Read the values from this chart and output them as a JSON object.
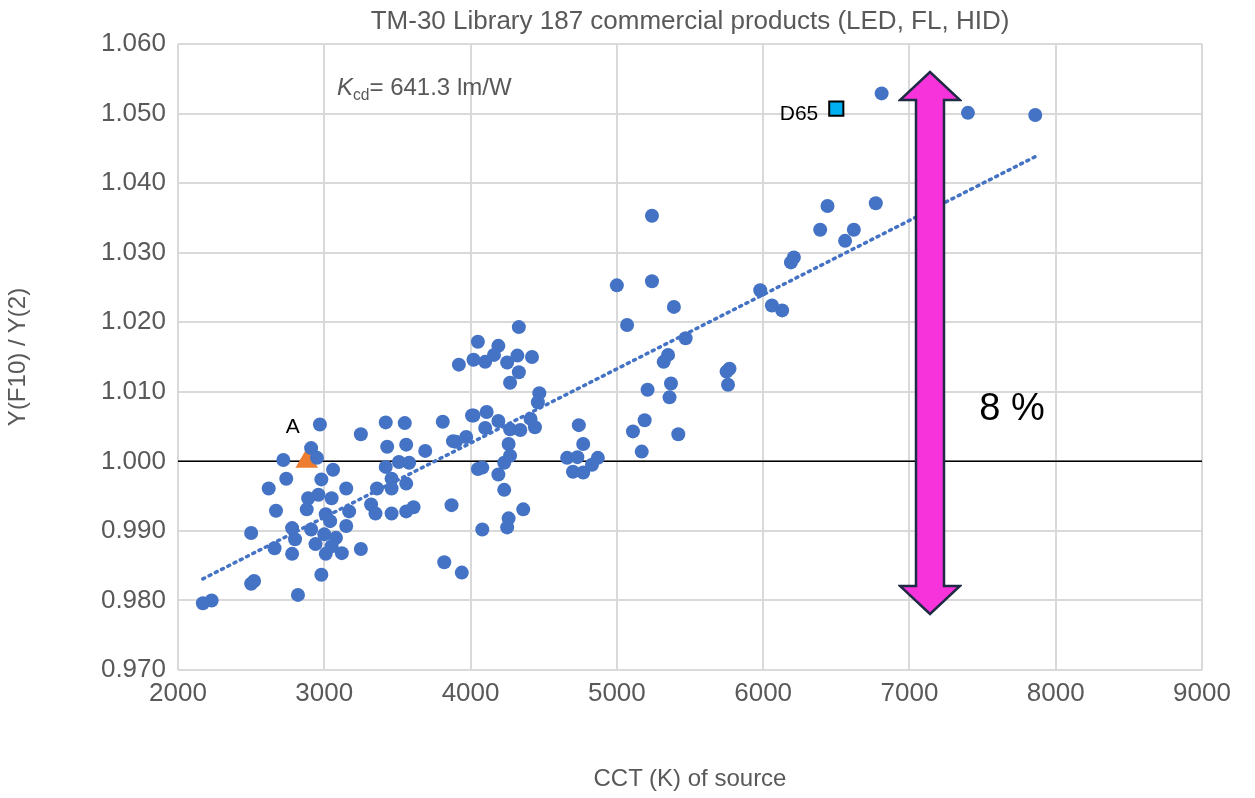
{
  "chart_data": {
    "type": "scatter",
    "title": "TM-30 Library 187 commercial products (LED, FL, HID)",
    "xlabel": "CCT (K) of source",
    "ylabel": "Y(F10) / Y(2)",
    "annotations": [
      "K$_{cd}$= 641.3 lm/W",
      "8 %"
    ],
    "xlim": [
      2000,
      9000
    ],
    "xticks": [
      2000,
      3000,
      4000,
      5000,
      6000,
      7000,
      8000,
      9000
    ],
    "ylim": [
      0.97,
      1.06
    ],
    "yticks": [
      {
        "value": 0.97,
        "label": "0.970"
      },
      {
        "value": 0.98,
        "label": "0.980"
      },
      {
        "value": 0.99,
        "label": "0.990"
      },
      {
        "value": 1.0,
        "label": "1.000"
      },
      {
        "value": 1.01,
        "label": "1.010"
      },
      {
        "value": 1.02,
        "label": "1.020"
      },
      {
        "value": 1.03,
        "label": "1.030"
      },
      {
        "value": 1.04,
        "label": "1.040"
      },
      {
        "value": 1.05,
        "label": "1.050"
      },
      {
        "value": 1.06,
        "label": "1.060"
      }
    ],
    "grid": true,
    "legend": false,
    "ref_lines": [
      {
        "axis": "y",
        "value": 1.0,
        "color": "#000000"
      }
    ],
    "series": [
      {
        "color": "#4472c4",
        "marker": "circle",
        "x": [
          2170,
          2230,
          2500,
          2500,
          2520,
          2620,
          2670,
          2660,
          2720,
          2740,
          2780,
          2780,
          2820,
          2910,
          2970,
          2950,
          3060,
          2980,
          3150,
          2890,
          2960,
          3050,
          2880,
          3010,
          3170,
          3040,
          3150,
          2910,
          3000,
          3080,
          2800,
          2940,
          3010,
          3120,
          3250,
          3050,
          2980,
          3250,
          3420,
          3550,
          3810,
          4010,
          3430,
          3560,
          3690,
          3900,
          3970,
          3420,
          3510,
          3580,
          3460,
          3560,
          3360,
          3460,
          3320,
          3350,
          3460,
          3560,
          3610,
          3870,
          3820,
          3940,
          4050,
          4330,
          4050,
          4190,
          4020,
          4100,
          4160,
          4250,
          4320,
          4420,
          3920,
          4330,
          4270,
          4470,
          4460,
          4020,
          4110,
          4100,
          4190,
          4270,
          4340,
          4410,
          4440,
          3880,
          4260,
          4270,
          4230,
          4080,
          4190,
          4230,
          4360,
          4260,
          4250,
          4080,
          4740,
          4770,
          4660,
          4730,
          4870,
          4700,
          4770,
          4830,
          5240,
          5000,
          5240,
          5390,
          5070,
          5470,
          5350,
          5320,
          5770,
          5750,
          5760,
          5370,
          5210,
          5360,
          5190,
          5110,
          5420,
          5170,
          5980,
          6060,
          6130,
          6190,
          6210,
          6390,
          6560,
          6620,
          6440,
          6770,
          6810,
          7400,
          7860
        ],
        "values": [
          0.9796,
          0.98,
          0.9897,
          0.9824,
          0.9828,
          0.9961,
          0.9929,
          0.9875,
          1.0002,
          0.9975,
          0.9904,
          0.9867,
          0.9808,
          1.0019,
          1.0053,
          1.0005,
          0.9988,
          0.9974,
          0.9961,
          0.9947,
          0.9952,
          0.9947,
          0.9931,
          0.9924,
          0.9928,
          0.9914,
          0.9907,
          0.9902,
          0.9895,
          0.989,
          0.9888,
          0.9881,
          0.9867,
          0.9868,
          0.9874,
          0.9878,
          0.9837,
          1.0039,
          1.0056,
          1.0055,
          1.0057,
          1.0066,
          1.0021,
          1.0024,
          1.0015,
          1.0028,
          1.0035,
          0.9992,
          0.9999,
          0.9998,
          0.9975,
          0.9968,
          0.9961,
          0.9961,
          0.9938,
          0.9925,
          0.9925,
          0.9928,
          0.9934,
          0.9937,
          0.9855,
          0.984,
          0.9989,
          1.0193,
          1.0172,
          1.0166,
          1.0146,
          1.0143,
          1.0153,
          1.0142,
          1.0152,
          1.015,
          1.0139,
          1.0128,
          1.0113,
          1.0098,
          1.0085,
          1.0066,
          1.0071,
          1.0048,
          1.0058,
          1.0046,
          1.0045,
          1.0061,
          1.0049,
          1.0029,
          1.0025,
          1.0008,
          0.9998,
          0.9991,
          0.9981,
          0.9959,
          0.9931,
          0.9918,
          0.9905,
          0.9902,
          1.0052,
          1.0025,
          1.0005,
          1.0006,
          1.0005,
          0.9985,
          0.9984,
          0.9995,
          1.0353,
          1.0253,
          1.0259,
          1.0222,
          1.0196,
          1.0177,
          1.0153,
          1.0143,
          1.0133,
          1.0129,
          1.011,
          1.0112,
          1.0103,
          1.0092,
          1.0059,
          1.0043,
          1.0039,
          1.0014,
          1.0246,
          1.0224,
          1.0217,
          1.0286,
          1.0293,
          1.0333,
          1.0317,
          1.0333,
          1.0367,
          1.0371,
          1.0529,
          1.0501,
          1.0498
        ]
      },
      {
        "type": "line",
        "color": "#4472c4",
        "marker": "none",
        "line_style": "dotted",
        "x": [
          2170,
          7860
        ],
        "values": [
          0.9831,
          1.0438
        ]
      },
      {
        "name": "A",
        "color": "#ed7d31",
        "marker": "triangle",
        "x": [
          2880
        ],
        "values": [
          1.0
        ]
      },
      {
        "name": "D65",
        "color": "#00b0f0",
        "marker": "square",
        "x": [
          6500
        ],
        "values": [
          1.0507
        ]
      }
    ]
  }
}
